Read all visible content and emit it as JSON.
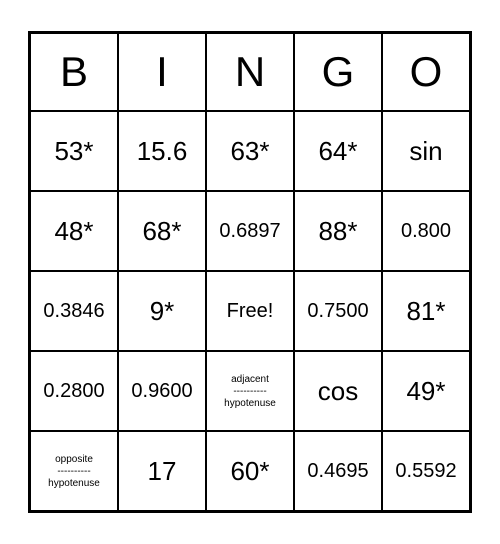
{
  "type": "bingo-card",
  "grid": {
    "cols": 5,
    "rows": 6
  },
  "colors": {
    "background": "#ffffff",
    "border": "#000000",
    "text": "#000000"
  },
  "font": {
    "header_size": 42,
    "cell_large": 26,
    "cell_medium": 20,
    "cell_small": 10
  },
  "headers": [
    "B",
    "I",
    "N",
    "G",
    "O"
  ],
  "cells": [
    [
      {
        "text": "53*",
        "size": "lg"
      },
      {
        "text": "15.6",
        "size": "lg"
      },
      {
        "text": "63*",
        "size": "lg"
      },
      {
        "text": "64*",
        "size": "lg"
      },
      {
        "text": "sin",
        "size": "lg"
      }
    ],
    [
      {
        "text": "48*",
        "size": "lg"
      },
      {
        "text": "68*",
        "size": "lg"
      },
      {
        "text": "0.6897",
        "size": "md"
      },
      {
        "text": "88*",
        "size": "lg"
      },
      {
        "text": "0.800",
        "size": "md"
      }
    ],
    [
      {
        "text": "0.3846",
        "size": "md"
      },
      {
        "text": "9*",
        "size": "lg"
      },
      {
        "text": "Free!",
        "size": "md"
      },
      {
        "text": "0.7500",
        "size": "md"
      },
      {
        "text": "81*",
        "size": "lg"
      }
    ],
    [
      {
        "text": "0.2800",
        "size": "md"
      },
      {
        "text": "0.9600",
        "size": "md"
      },
      {
        "frac": {
          "top": "adjacent",
          "sep": "----------",
          "bot": "hypotenuse"
        },
        "size": "sm"
      },
      {
        "text": "cos",
        "size": "lg"
      },
      {
        "text": "49*",
        "size": "lg"
      }
    ],
    [
      {
        "frac": {
          "top": "opposite",
          "sep": "----------",
          "bot": "hypotenuse"
        },
        "size": "sm"
      },
      {
        "text": "17",
        "size": "lg"
      },
      {
        "text": "60*",
        "size": "lg"
      },
      {
        "text": "0.4695",
        "size": "md"
      },
      {
        "text": "0.5592",
        "size": "md"
      }
    ]
  ]
}
